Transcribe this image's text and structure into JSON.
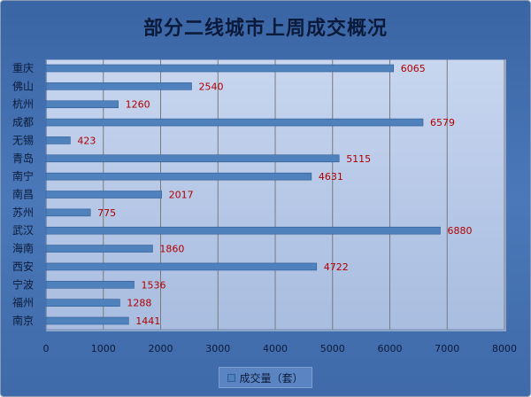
{
  "chart_data": {
    "type": "bar",
    "orientation": "horizontal",
    "title": "部分二线城市上周成交概况",
    "categories": [
      "重庆",
      "佛山",
      "杭州",
      "成都",
      "无锡",
      "青岛",
      "南宁",
      "南昌",
      "苏州",
      "武汉",
      "海南",
      "西安",
      "宁波",
      "福州",
      "南京"
    ],
    "series": [
      {
        "name": "成交量（套）",
        "values": [
          6065,
          2540,
          1260,
          6579,
          423,
          5115,
          4631,
          2017,
          775,
          6880,
          1860,
          4722,
          1536,
          1288,
          1441
        ]
      }
    ],
    "xlim": [
      0,
      8000
    ],
    "xticks": [
      0,
      1000,
      2000,
      3000,
      4000,
      5000,
      6000,
      7000,
      8000
    ],
    "grid": true,
    "legend_position": "bottom",
    "bar_color": "#4f81bd",
    "label_color": "#b00000"
  }
}
